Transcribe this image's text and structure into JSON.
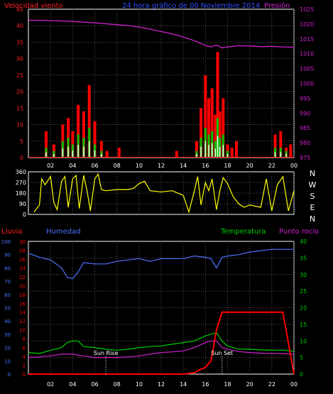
{
  "colors": {
    "background": "#000000",
    "frame": "#ffffff",
    "grid": "#555555",
    "wind_axis": "#ff2020",
    "pressure": "#d020d0",
    "wind_avg": "#00c000",
    "wind_peak": "#ff0000",
    "wind_mean_core": "#ffffff",
    "direction": "#ffff00",
    "rain": "#ff0000",
    "humidity": "#5070ff",
    "temperature": "#00d000",
    "dewpoint": "#d020d0"
  },
  "header": {
    "left": "Velocidad viento",
    "center": "24 hora gráfico de 00 Noviembre 2014",
    "right": "Presión"
  },
  "x_ticks": [
    "02",
    "04",
    "06",
    "08",
    "10",
    "12",
    "14",
    "16",
    "18",
    "20",
    "22",
    "00"
  ],
  "top_chart": {
    "wind_ticks": [
      "45",
      "40",
      "35",
      "30",
      "25",
      "20",
      "15",
      "10",
      "5",
      "0"
    ],
    "pressure_ticks": [
      "1025",
      "1020",
      "1015",
      "1010",
      "1005",
      "1000",
      "995",
      "990",
      "985",
      "980",
      "975"
    ]
  },
  "direction_chart": {
    "ticks": [
      "360",
      "270",
      "180",
      "90",
      "0"
    ],
    "compass": [
      "N",
      "W",
      "S",
      "E",
      "N"
    ]
  },
  "bottom_chart": {
    "labels": {
      "lluvia": "Lluvia",
      "humedad": "Humedad",
      "temperatura": "Temperatura",
      "punto": "Punto rocío"
    },
    "humidity_ticks": [
      "100",
      "90",
      "80",
      "70",
      "60",
      "50",
      "40",
      "30",
      "20",
      "10",
      "0"
    ],
    "rain_ticks": [
      "30",
      "28",
      "26",
      "24",
      "22",
      "20",
      "18",
      "16",
      "14",
      "12",
      "10",
      "8",
      "6",
      "4",
      "2",
      "0"
    ],
    "temp_ticks": [
      "40",
      "35",
      "30",
      "25",
      "20",
      "15",
      "10",
      "5",
      "0"
    ],
    "sunrise": "Sun Rise",
    "sunset": "Sun Set"
  },
  "chart_data": [
    {
      "type": "line",
      "x_unit": "hour",
      "x_ticks": [
        "02",
        "04",
        "06",
        "08",
        "10",
        "12",
        "14",
        "16",
        "18",
        "20",
        "22",
        "00"
      ],
      "ylabel": "Velocidad viento",
      "ylim": [
        0,
        45
      ],
      "y2label": "Presión",
      "y2lim": [
        975,
        1025
      ],
      "series": [
        {
          "name": "Presión",
          "axis": "right",
          "x": [
            0,
            2,
            4,
            6,
            7,
            8,
            9,
            10,
            11,
            12,
            13,
            14,
            15,
            16,
            16.5,
            17,
            17.5,
            18,
            19,
            20,
            21,
            22,
            23,
            24
          ],
          "values": [
            1021.3,
            1021.2,
            1020.9,
            1020.4,
            1020.1,
            1019.8,
            1019.5,
            1019.0,
            1018.3,
            1017.5,
            1016.7,
            1015.6,
            1014.4,
            1012.8,
            1012.3,
            1012.9,
            1012.0,
            1012.3,
            1012.7,
            1012.6,
            1012.4,
            1012.5,
            1012.3,
            1012.2
          ]
        },
        {
          "name": "wind_peak",
          "x": [
            1.6,
            2.3,
            3.1,
            3.6,
            4.0,
            4.5,
            5.0,
            5.5,
            6.0,
            6.6,
            7.1,
            8.2,
            13.4,
            15.2,
            15.6,
            16.0,
            16.3,
            16.6,
            16.9,
            17.1,
            17.3,
            17.6,
            18.0,
            18.4,
            18.8,
            22.3,
            22.8,
            23.3,
            23.7
          ],
          "values": [
            8,
            4,
            10,
            12,
            8,
            16,
            14,
            22,
            11,
            5,
            2,
            3,
            2,
            5,
            15,
            25,
            18,
            21,
            13,
            32,
            14,
            18,
            4,
            3,
            5,
            7,
            8,
            3,
            4
          ]
        },
        {
          "name": "wind_avg",
          "x": [
            1.6,
            2.3,
            3.1,
            3.6,
            4.0,
            4.5,
            5.0,
            5.5,
            6.0,
            6.6,
            15.2,
            15.6,
            16.0,
            16.3,
            16.6,
            16.9,
            17.1,
            17.3,
            17.6,
            18.0,
            22.3,
            22.8,
            23.3
          ],
          "values": [
            3,
            2,
            5,
            6,
            4,
            7,
            6,
            9,
            4,
            2,
            2,
            6,
            9,
            7,
            8,
            5,
            12,
            6,
            7,
            2,
            3,
            3,
            2
          ]
        }
      ]
    },
    {
      "type": "scatter",
      "x_unit": "hour",
      "ylim": [
        0,
        360
      ],
      "series": [
        {
          "name": "direction",
          "x": [
            0.5,
            1,
            1.2,
            1.5,
            2,
            2.3,
            2.6,
            3,
            3.3,
            3.6,
            4,
            4.3,
            4.6,
            5,
            5.3,
            5.6,
            6,
            6.3,
            6.6,
            7,
            8,
            9,
            9.5,
            10,
            10.5,
            11,
            12,
            13,
            14,
            14.5,
            15,
            15.3,
            15.6,
            16,
            16.3,
            16.6,
            17,
            17.3,
            17.6,
            18,
            18.5,
            19,
            19.5,
            20,
            21,
            21.5,
            22,
            22.5,
            23,
            23.5,
            24
          ],
          "values": [
            20,
            80,
            300,
            250,
            320,
            100,
            40,
            280,
            320,
            60,
            300,
            330,
            50,
            330,
            200,
            30,
            300,
            340,
            210,
            200,
            210,
            210,
            220,
            260,
            280,
            200,
            190,
            200,
            160,
            20,
            200,
            320,
            80,
            270,
            200,
            300,
            40,
            200,
            310,
            260,
            150,
            90,
            60,
            80,
            60,
            300,
            30,
            250,
            320,
            30,
            200
          ]
        }
      ]
    },
    {
      "type": "line",
      "x_unit": "hour",
      "x_ticks": [
        "02",
        "04",
        "06",
        "08",
        "10",
        "12",
        "14",
        "16",
        "18",
        "20",
        "22",
        "00"
      ],
      "ylabel": "Humedad",
      "ylim": [
        0,
        100
      ],
      "y2label": "Temperatura",
      "y2lim": [
        0,
        40
      ],
      "series": [
        {
          "name": "Humedad",
          "axis": "humidity",
          "x": [
            0,
            1,
            2,
            3,
            3.5,
            4,
            4.5,
            5,
            6,
            7,
            8,
            9,
            10,
            11,
            12,
            13,
            14,
            15,
            16,
            16.5,
            17,
            17.5,
            18,
            19,
            20,
            21,
            22,
            23,
            24
          ],
          "values": [
            91,
            88,
            86,
            80,
            73,
            72,
            77,
            84,
            83,
            83,
            85,
            86,
            87,
            85,
            87,
            87,
            87,
            89,
            88,
            87,
            80,
            88,
            89,
            90,
            92,
            93,
            94,
            94,
            94
          ]
        },
        {
          "name": "Temperatura",
          "axis": "temp",
          "x": [
            0,
            1,
            2,
            3,
            3.5,
            4,
            4.5,
            5,
            6,
            7,
            8,
            9,
            10,
            11,
            12,
            13,
            14,
            15,
            16,
            16.5,
            17,
            17.5,
            18,
            19,
            20,
            21,
            22,
            23,
            24
          ],
          "values": [
            6.5,
            6.2,
            7.2,
            8,
            9.5,
            10,
            10,
            8.3,
            8,
            7.5,
            7.2,
            7.5,
            8,
            8.3,
            8.5,
            9,
            9.5,
            10,
            11.5,
            12,
            12.5,
            10,
            8.5,
            7.5,
            7.5,
            7.3,
            7.2,
            7.2,
            6.9
          ]
        },
        {
          "name": "Punto rocío",
          "axis": "temp",
          "x": [
            0,
            1,
            2,
            3,
            4,
            5,
            6,
            7,
            8,
            9,
            10,
            11,
            12,
            13,
            14,
            15,
            16,
            16.5,
            17,
            17.5,
            18,
            19,
            20,
            21,
            22,
            23,
            24
          ],
          "values": [
            5,
            5.2,
            5.5,
            6,
            6,
            5.5,
            5,
            5,
            5,
            5.2,
            5.5,
            6,
            6.5,
            6.7,
            7,
            8,
            9.5,
            10,
            10,
            8,
            7.5,
            6.8,
            6.5,
            6.3,
            6.2,
            6.2,
            6
          ]
        },
        {
          "name": "Lluvia",
          "axis": "rain",
          "x": [
            0,
            14,
            15,
            15.5,
            16,
            16.5,
            17,
            17.5,
            18,
            19,
            20,
            21,
            22,
            23,
            24
          ],
          "values": [
            0,
            0,
            0.3,
            1,
            1.5,
            3,
            10,
            14,
            14,
            14,
            14,
            14,
            14,
            14,
            0
          ]
        }
      ],
      "annotations": [
        {
          "text": "Sun Rise",
          "x": 7.0
        },
        {
          "text": "Sun Set",
          "x": 17.5
        }
      ]
    }
  ]
}
